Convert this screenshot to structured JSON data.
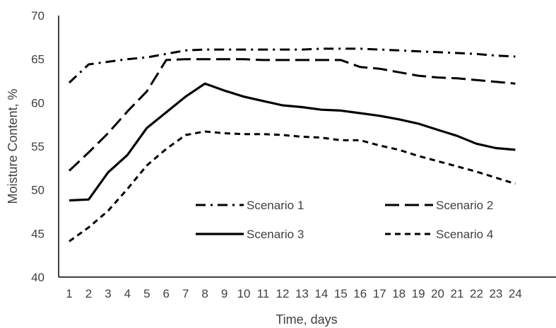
{
  "chart_data": {
    "type": "line",
    "xlabel": "Time, days",
    "ylabel": "Moisture Content, %",
    "ylim": [
      40,
      70
    ],
    "yticks": [
      40,
      45,
      50,
      55,
      60,
      65,
      70
    ],
    "categories": [
      1,
      2,
      3,
      4,
      5,
      6,
      7,
      8,
      9,
      10,
      11,
      12,
      13,
      14,
      15,
      16,
      17,
      18,
      19,
      20,
      21,
      22,
      23,
      24
    ],
    "grid": false,
    "legend": "bottom-inside",
    "line_color": "#000000",
    "series": [
      {
        "name": "Scenario 1",
        "dash": "dash-dot",
        "values": [
          62.3,
          64.4,
          64.7,
          65.0,
          65.2,
          65.6,
          66.0,
          66.1,
          66.1,
          66.1,
          66.1,
          66.1,
          66.1,
          66.2,
          66.2,
          66.2,
          66.1,
          66.0,
          65.9,
          65.8,
          65.7,
          65.6,
          65.4,
          65.3
        ]
      },
      {
        "name": "Scenario 2",
        "dash": "long-dash",
        "values": [
          52.2,
          54.3,
          56.5,
          59.0,
          61.3,
          64.9,
          65.0,
          65.0,
          65.0,
          65.0,
          64.9,
          64.9,
          64.9,
          64.9,
          64.9,
          64.1,
          63.9,
          63.5,
          63.1,
          62.9,
          62.8,
          62.6,
          62.4,
          62.2
        ]
      },
      {
        "name": "Scenario 3",
        "dash": "solid",
        "values": [
          48.8,
          48.9,
          52.0,
          54.0,
          57.1,
          58.9,
          60.7,
          62.2,
          61.4,
          60.7,
          60.2,
          59.7,
          59.5,
          59.2,
          59.1,
          58.8,
          58.5,
          58.1,
          57.6,
          56.9,
          56.2,
          55.3,
          54.8,
          54.6
        ]
      },
      {
        "name": "Scenario 4",
        "dash": "short-dash",
        "values": [
          44.1,
          45.7,
          47.6,
          50.1,
          52.8,
          54.7,
          56.3,
          56.7,
          56.5,
          56.4,
          56.4,
          56.3,
          56.1,
          56.0,
          55.7,
          55.7,
          55.1,
          54.6,
          53.9,
          53.3,
          52.7,
          52.1,
          51.4,
          50.7
        ]
      }
    ]
  }
}
